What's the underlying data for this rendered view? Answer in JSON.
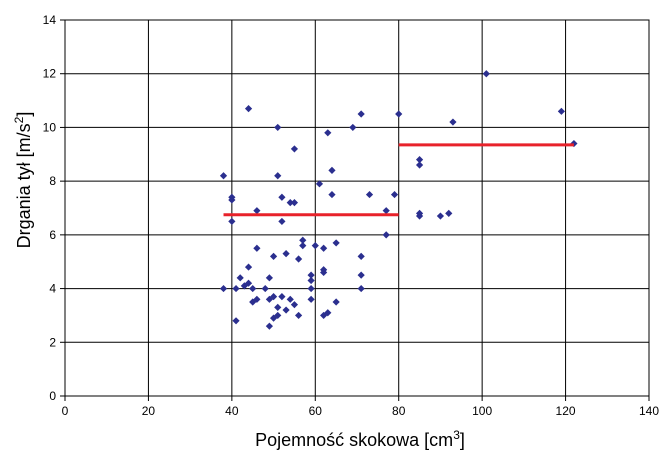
{
  "chart_data": {
    "type": "scatter",
    "xlabel": "Pojemność skokowa [cm",
    "xlabel_sup": "3",
    "xlabel_end": "]",
    "ylabel": "Drgania tył [m/s",
    "ylabel_sup": "2",
    "ylabel_end": "]",
    "xlim": [
      0,
      140
    ],
    "ylim": [
      0,
      14
    ],
    "xticks": [
      0,
      20,
      40,
      60,
      80,
      100,
      120,
      140
    ],
    "yticks": [
      0,
      2,
      4,
      6,
      8,
      10,
      12,
      14
    ],
    "grid": true,
    "legend": "none",
    "marker_color": "#2b2f8f",
    "line_color": "#e8222a",
    "series": [
      {
        "marker": "diamond",
        "points": [
          [
            38,
            4.0
          ],
          [
            38,
            8.2
          ],
          [
            40,
            6.5
          ],
          [
            40,
            7.3
          ],
          [
            40,
            7.4
          ],
          [
            41,
            2.8
          ],
          [
            41,
            4.0
          ],
          [
            42,
            4.4
          ],
          [
            43,
            4.1
          ],
          [
            44,
            4.2
          ],
          [
            44,
            4.8
          ],
          [
            44,
            10.7
          ],
          [
            45,
            3.5
          ],
          [
            45,
            4.0
          ],
          [
            46,
            3.6
          ],
          [
            46,
            5.5
          ],
          [
            46,
            6.9
          ],
          [
            48,
            4.0
          ],
          [
            49,
            2.6
          ],
          [
            49,
            3.6
          ],
          [
            49,
            4.4
          ],
          [
            50,
            2.9
          ],
          [
            50,
            3.7
          ],
          [
            50,
            5.2
          ],
          [
            51,
            3.0
          ],
          [
            51,
            3.3
          ],
          [
            51,
            8.2
          ],
          [
            51,
            10.0
          ],
          [
            52,
            3.7
          ],
          [
            52,
            6.5
          ],
          [
            52,
            7.4
          ],
          [
            53,
            3.2
          ],
          [
            53,
            5.3
          ],
          [
            54,
            3.6
          ],
          [
            54,
            7.2
          ],
          [
            55,
            3.4
          ],
          [
            55,
            7.2
          ],
          [
            55,
            9.2
          ],
          [
            56,
            3.0
          ],
          [
            56,
            5.1
          ],
          [
            57,
            5.6
          ],
          [
            57,
            5.8
          ],
          [
            59,
            3.6
          ],
          [
            59,
            4.0
          ],
          [
            59,
            4.3
          ],
          [
            59,
            4.5
          ],
          [
            60,
            5.6
          ],
          [
            61,
            7.9
          ],
          [
            62,
            3.0
          ],
          [
            62,
            4.6
          ],
          [
            62,
            4.7
          ],
          [
            62,
            5.5
          ],
          [
            63,
            3.1
          ],
          [
            63,
            9.8
          ],
          [
            64,
            7.5
          ],
          [
            64,
            8.4
          ],
          [
            65,
            3.5
          ],
          [
            65,
            5.7
          ],
          [
            69,
            10.0
          ],
          [
            71,
            4.0
          ],
          [
            71,
            4.5
          ],
          [
            71,
            5.2
          ],
          [
            71,
            10.5
          ],
          [
            73,
            7.5
          ],
          [
            77,
            6.0
          ],
          [
            77,
            6.9
          ],
          [
            79,
            7.5
          ],
          [
            80,
            10.5
          ],
          [
            85,
            6.7
          ],
          [
            85,
            6.8
          ],
          [
            85,
            8.6
          ],
          [
            85,
            8.8
          ],
          [
            90,
            6.7
          ],
          [
            92,
            6.8
          ],
          [
            93,
            10.2
          ],
          [
            101,
            12.0
          ],
          [
            119,
            10.6
          ],
          [
            122,
            9.4
          ]
        ]
      }
    ],
    "reference_lines": [
      {
        "x_start": 38,
        "x_end": 80,
        "y": 6.75
      },
      {
        "x_start": 80,
        "x_end": 122,
        "y": 9.35
      }
    ]
  }
}
